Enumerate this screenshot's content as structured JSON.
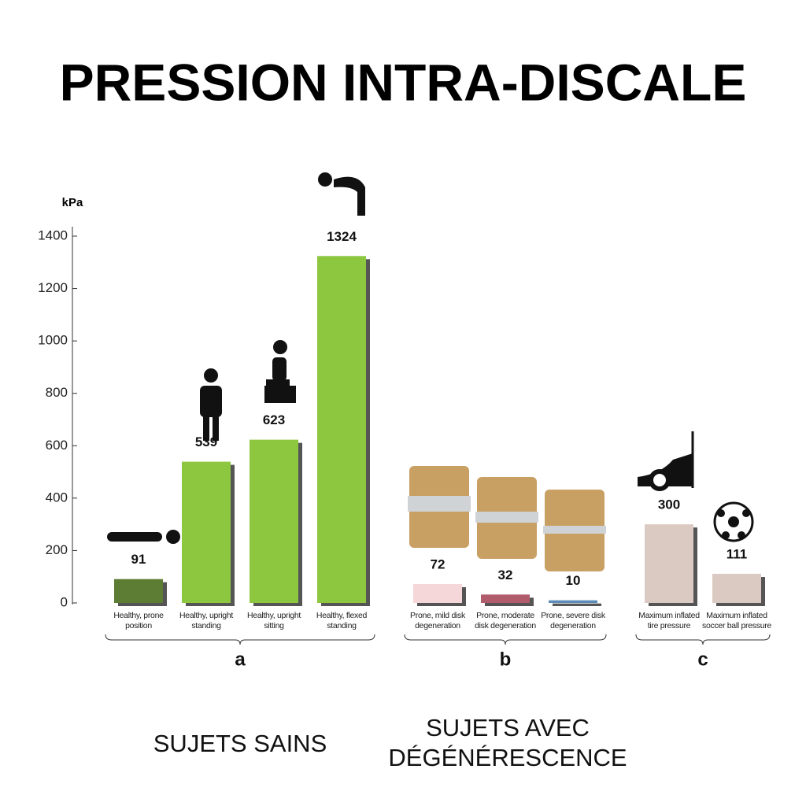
{
  "chart_data": {
    "type": "bar",
    "title": "PRESSION INTRA-DISCALE",
    "y_label": "kPa",
    "categories": [
      "Healthy, prone position",
      "Healthy, upright standing",
      "Healthy, upright sitting",
      "Healthy, flexed standing",
      "Prone, mild disk degeneration",
      "Prone, moderate disk degeneration",
      "Prone, severe disk degeneration",
      "Maximum inflated tire pressure",
      "Maximum inflated soccer ball pressure"
    ],
    "values": [
      91,
      539,
      623,
      1324,
      72,
      32,
      10,
      300,
      111
    ],
    "colors": [
      "#5e7d34",
      "#8dc63f",
      "#8dc63f",
      "#8dc63f",
      "#f5d7da",
      "#b05c6c",
      "#5b8bb8",
      "#dbcac2",
      "#dbcac2"
    ],
    "groups": [
      "a",
      "a",
      "a",
      "a",
      "b",
      "b",
      "b",
      "c",
      "c"
    ],
    "ylim": [
      0,
      1400
    ],
    "yticks": [
      0,
      200,
      400,
      600,
      800,
      1000,
      1200,
      1400
    ],
    "captions": [
      "SUJETS SAINS",
      "SUJETS AVEC DÉGÉNÉRESCENCE"
    ]
  }
}
